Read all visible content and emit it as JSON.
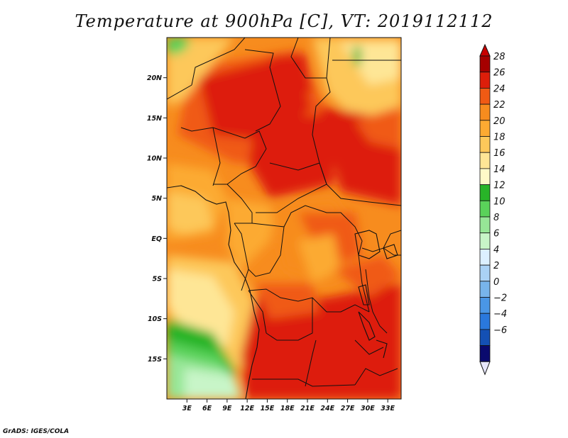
{
  "title": "Temperature at 900hPa [C], VT: 2019112112",
  "footer": "GrADS: IGES/COLA",
  "map": {
    "lat_range": [
      -20,
      25
    ],
    "lon_range": [
      0,
      35
    ],
    "lat_ticks": [
      {
        "lat": 20,
        "label": "20N"
      },
      {
        "lat": 15,
        "label": "15N"
      },
      {
        "lat": 10,
        "label": "10N"
      },
      {
        "lat": 5,
        "label": "5N"
      },
      {
        "lat": 0,
        "label": "EQ"
      },
      {
        "lat": -5,
        "label": "5S"
      },
      {
        "lat": -10,
        "label": "10S"
      },
      {
        "lat": -15,
        "label": "15S"
      }
    ],
    "lon_ticks": [
      {
        "lon": 3,
        "label": "3E"
      },
      {
        "lon": 6,
        "label": "6E"
      },
      {
        "lon": 9,
        "label": "9E"
      },
      {
        "lon": 12,
        "label": "12E"
      },
      {
        "lon": 15,
        "label": "15E"
      },
      {
        "lon": 18,
        "label": "18E"
      },
      {
        "lon": 21,
        "label": "21E"
      },
      {
        "lon": 24,
        "label": "24E"
      },
      {
        "lon": 27,
        "label": "27E"
      },
      {
        "lon": 30,
        "label": "30E"
      },
      {
        "lon": 33,
        "label": "33E"
      }
    ]
  },
  "colorbar": {
    "bins": [
      {
        "label": "28",
        "color": "#a50000"
      },
      {
        "label": "26",
        "color": "#dd1e0a"
      },
      {
        "label": "24",
        "color": "#f05a14"
      },
      {
        "label": "22",
        "color": "#f78c1e"
      },
      {
        "label": "20",
        "color": "#fcaa32"
      },
      {
        "label": "18",
        "color": "#fdc85a"
      },
      {
        "label": "16",
        "color": "#fee696"
      },
      {
        "label": "14",
        "color": "#fffac8"
      },
      {
        "label": "12",
        "color": "#28b428"
      },
      {
        "label": "10",
        "color": "#5ad25a"
      },
      {
        "label": "8",
        "color": "#96e696"
      },
      {
        "label": "6",
        "color": "#c8f5c8"
      },
      {
        "label": "4",
        "color": "#dcf0ff"
      },
      {
        "label": "2",
        "color": "#aad2f5"
      },
      {
        "label": "0",
        "color": "#78b4eb"
      },
      {
        "label": "−2",
        "color": "#4a96e6"
      },
      {
        "label": "−4",
        "color": "#2a78dc"
      },
      {
        "label": "−6",
        "color": "#1450b4"
      }
    ],
    "over_color": "#c80000",
    "under_color": "#e6e6fa",
    "lowest_color": "#0a0a6e"
  }
}
